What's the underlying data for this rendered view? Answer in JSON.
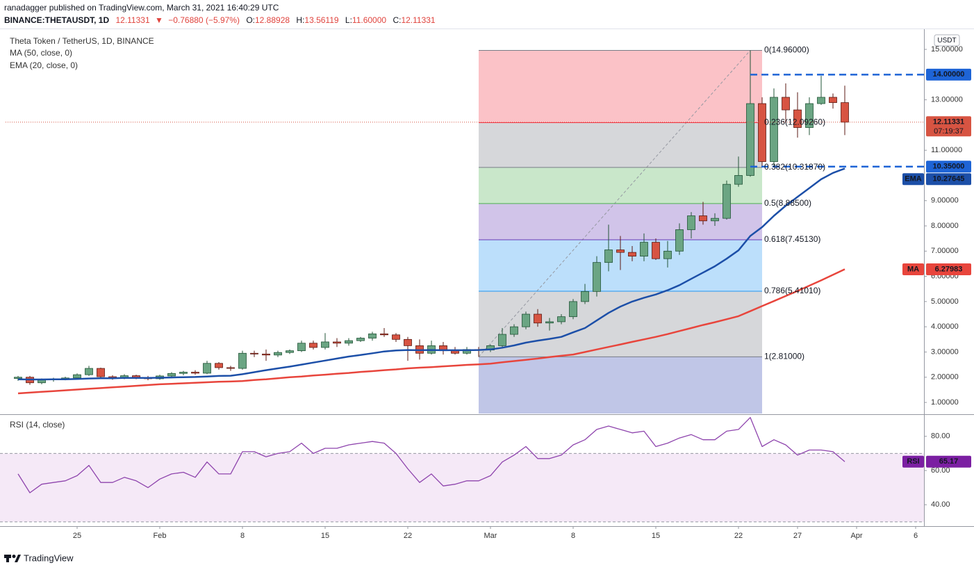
{
  "header": {
    "publisher": "ranadagger published on TradingView.com, March 31, 2021 16:40:29 UTC",
    "symbol": "BINANCE:THETAUSDT, 1D",
    "last": "12.11331",
    "arrow": "▼",
    "change": "−0.76880 (−5.97%)",
    "ohlc": [
      {
        "k": "O:",
        "v": "12.88928"
      },
      {
        "k": "H:",
        "v": "13.56119"
      },
      {
        "k": "L:",
        "v": "11.60000"
      },
      {
        "k": "C:",
        "v": "12.11331"
      }
    ]
  },
  "footer": {
    "brand": "TradingView"
  },
  "chart_data": [
    {
      "type": "candlestick",
      "title": "Theta Token / TetherUS, 1D, BINANCE",
      "currency": "USDT",
      "countdown": "07:19:37",
      "up_color": "#6ba583",
      "down_color": "#d75442",
      "up_border": "#225437",
      "down_border": "#5b1a13",
      "categories": [
        null,
        null,
        null,
        null,
        null,
        "25",
        null,
        null,
        null,
        null,
        null,
        null,
        "Feb",
        null,
        null,
        null,
        null,
        null,
        null,
        "8",
        null,
        null,
        null,
        null,
        null,
        null,
        "15",
        null,
        null,
        null,
        null,
        null,
        null,
        "22",
        null,
        null,
        null,
        null,
        null,
        null,
        "Mar",
        null,
        null,
        null,
        null,
        null,
        null,
        "8",
        null,
        null,
        null,
        null,
        null,
        null,
        "15",
        null,
        null,
        null,
        null,
        null,
        null,
        "22",
        null,
        null,
        null,
        null,
        "27",
        null,
        null,
        null,
        null,
        "Apr",
        null,
        null,
        null,
        null,
        "6",
        null
      ],
      "open": [
        1.95,
        2.0,
        1.78,
        1.9,
        1.93,
        1.97,
        2.1,
        2.35,
        2.02,
        1.98,
        2.06,
        1.98,
        1.94,
        2.05,
        2.15,
        2.2,
        2.16,
        2.55,
        2.38,
        2.35,
        2.95,
        2.92,
        2.88,
        2.98,
        3.05,
        3.35,
        3.18,
        3.4,
        3.35,
        3.45,
        3.55,
        3.72,
        3.68,
        3.5,
        3.25,
        2.95,
        3.25,
        3.05,
        2.95,
        3.1,
        3.08,
        3.25,
        3.7,
        4.0,
        4.5,
        4.15,
        4.2,
        4.4,
        5.0,
        5.4,
        6.55,
        7.05,
        6.95,
        6.8,
        7.35,
        6.7,
        7.0,
        7.85,
        8.4,
        8.2,
        8.3,
        9.65,
        10.0,
        12.85,
        10.55,
        13.1,
        12.6,
        11.9,
        12.85,
        13.1,
        12.88928,
        null,
        null,
        null,
        null,
        null,
        null,
        null
      ],
      "high": [
        2.05,
        2.05,
        1.95,
        1.98,
        2.02,
        2.15,
        2.45,
        2.38,
        2.08,
        2.12,
        2.1,
        2.05,
        2.1,
        2.2,
        2.25,
        2.28,
        2.65,
        2.6,
        2.45,
        3.05,
        3.05,
        3.1,
        3.05,
        3.1,
        3.45,
        3.45,
        3.75,
        3.55,
        3.55,
        3.6,
        3.8,
        3.95,
        3.75,
        3.6,
        3.5,
        3.45,
        3.4,
        3.2,
        3.2,
        3.2,
        3.3,
        3.95,
        4.1,
        4.6,
        4.7,
        4.35,
        4.5,
        5.1,
        5.7,
        6.8,
        8.05,
        7.6,
        7.2,
        7.7,
        7.5,
        7.4,
        8.1,
        8.55,
        8.95,
        8.5,
        9.8,
        10.75,
        14.96,
        13.1,
        13.45,
        13.65,
        13.3,
        13.1,
        13.95,
        13.25,
        13.56119,
        null,
        null,
        null,
        null,
        null,
        null,
        null
      ],
      "low": [
        1.86,
        1.7,
        1.72,
        1.82,
        1.88,
        1.92,
        2.05,
        1.95,
        1.9,
        1.92,
        1.92,
        1.88,
        1.9,
        2.0,
        2.08,
        2.1,
        2.12,
        2.3,
        2.25,
        2.3,
        2.8,
        2.65,
        2.8,
        2.92,
        3.0,
        3.1,
        3.1,
        3.2,
        3.25,
        3.4,
        3.45,
        3.6,
        3.4,
        2.65,
        2.7,
        2.9,
        2.9,
        2.9,
        2.9,
        2.81,
        3.0,
        3.2,
        3.6,
        3.9,
        4.0,
        3.85,
        4.1,
        4.3,
        4.9,
        5.2,
        6.2,
        6.25,
        6.6,
        6.6,
        6.65,
        6.35,
        6.85,
        7.5,
        8.05,
        8.0,
        8.25,
        9.55,
        9.95,
        10.35,
        10.35,
        12.1,
        11.5,
        11.6,
        12.8,
        12.65,
        11.6,
        null,
        null,
        null,
        null,
        null,
        null,
        null
      ],
      "close": [
        2.0,
        1.78,
        1.9,
        1.93,
        1.97,
        2.1,
        2.35,
        2.02,
        1.98,
        2.06,
        1.98,
        1.94,
        2.05,
        2.15,
        2.2,
        2.16,
        2.55,
        2.38,
        2.35,
        2.95,
        2.92,
        2.88,
        2.98,
        3.05,
        3.35,
        3.18,
        3.4,
        3.35,
        3.45,
        3.55,
        3.72,
        3.68,
        3.5,
        3.25,
        2.95,
        3.25,
        3.05,
        2.95,
        3.1,
        3.08,
        3.25,
        3.7,
        4.0,
        4.5,
        4.15,
        4.2,
        4.4,
        5.0,
        5.4,
        6.55,
        7.05,
        6.95,
        6.8,
        7.35,
        6.7,
        7.0,
        7.85,
        8.4,
        8.2,
        8.3,
        9.65,
        10.0,
        12.85,
        10.55,
        13.1,
        12.6,
        11.9,
        12.85,
        13.1,
        12.88928,
        12.11331,
        null,
        null,
        null,
        null,
        null,
        null,
        null
      ],
      "series": [
        {
          "name": "MA (50, close, 0)",
          "tag": "MA",
          "color": "#e8453c",
          "values": [
            1.36,
            1.39,
            1.42,
            1.45,
            1.48,
            1.51,
            1.54,
            1.57,
            1.6,
            1.63,
            1.66,
            1.69,
            1.72,
            1.74,
            1.76,
            1.78,
            1.8,
            1.82,
            1.83,
            1.85,
            1.89,
            1.92,
            1.96,
            2.0,
            2.03,
            2.07,
            2.1,
            2.14,
            2.17,
            2.21,
            2.24,
            2.28,
            2.31,
            2.35,
            2.38,
            2.4,
            2.43,
            2.46,
            2.49,
            2.51,
            2.54,
            2.59,
            2.64,
            2.69,
            2.74,
            2.8,
            2.85,
            2.9,
            3.0,
            3.1,
            3.2,
            3.3,
            3.4,
            3.5,
            3.6,
            3.71,
            3.83,
            3.95,
            4.07,
            4.18,
            4.3,
            4.42,
            4.62,
            4.82,
            5.02,
            5.22,
            5.42,
            5.63,
            5.84,
            6.06,
            6.27983,
            null,
            null,
            null,
            null,
            null,
            null,
            null
          ]
        },
        {
          "name": "EMA (20, close, 0)",
          "tag": "EMA",
          "color": "#1c4fa8",
          "values": [
            1.92,
            1.91,
            1.91,
            1.92,
            1.92,
            1.93,
            1.95,
            1.96,
            1.96,
            1.97,
            1.97,
            1.97,
            1.98,
            1.99,
            2.0,
            2.01,
            2.03,
            2.05,
            2.06,
            2.12,
            2.2,
            2.28,
            2.35,
            2.42,
            2.5,
            2.58,
            2.66,
            2.74,
            2.82,
            2.88,
            2.95,
            3.02,
            3.06,
            3.08,
            3.07,
            3.08,
            3.07,
            3.07,
            3.07,
            3.08,
            3.1,
            3.17,
            3.26,
            3.37,
            3.45,
            3.52,
            3.6,
            3.78,
            3.95,
            4.25,
            4.55,
            4.8,
            5.0,
            5.15,
            5.28,
            5.45,
            5.65,
            5.9,
            6.15,
            6.4,
            6.7,
            7.03,
            7.6,
            7.95,
            8.4,
            8.8,
            9.15,
            9.5,
            9.85,
            10.1,
            10.27645,
            null,
            null,
            null,
            null,
            null,
            null,
            null
          ]
        }
      ],
      "ylim": [
        0.56,
        15.8
      ],
      "yticks": [
        {
          "value": 1,
          "label": "1.00000"
        },
        {
          "value": 2,
          "label": "2.00000"
        },
        {
          "value": 3,
          "label": "3.00000"
        },
        {
          "value": 4,
          "label": "4.00000"
        },
        {
          "value": 5,
          "label": "5.00000"
        },
        {
          "value": 6,
          "label": "6.00000"
        },
        {
          "value": 7,
          "label": "7.00000"
        },
        {
          "value": 8,
          "label": "8.00000"
        },
        {
          "value": 9,
          "label": "9.00000"
        },
        {
          "value": 11,
          "label": "11.00000"
        },
        {
          "value": 13,
          "label": "13.00000"
        },
        {
          "value": 15,
          "label": "15.00000"
        }
      ],
      "hlines": [
        {
          "value": 14,
          "label": "14.00000",
          "color": "#1e64d6"
        },
        {
          "value": 10.35,
          "label": "10.35000",
          "color": "#1e64d6"
        }
      ],
      "fib": {
        "fill_opacity": 0.3,
        "levels": [
          {
            "value": 14.96,
            "label": "0(14.96000)",
            "color": "#787b86"
          },
          {
            "value": 12.0926,
            "label": "0.236(12.09260)",
            "color": "#f23645"
          },
          {
            "value": 10.3187,
            "label": "0.382(10.31870)",
            "color": "#787b86"
          },
          {
            "value": 8.885,
            "label": "0.5(8.88500)",
            "color": "#4caf50"
          },
          {
            "value": 7.4513,
            "label": "0.618(7.45130)",
            "color": "#673ab7"
          },
          {
            "value": 5.4101,
            "label": "0.786(5.41010)",
            "color": "#2196f3"
          },
          {
            "value": 2.81,
            "label": "1(2.81000)",
            "color": "#787b86"
          }
        ]
      }
    },
    {
      "type": "line",
      "title": "RSI (14, close)",
      "series": [
        {
          "name": "RSI",
          "tag": "RSI",
          "color": "#8e44ad",
          "box_color": "#7b1fa2",
          "values": [
            58,
            47,
            52,
            53,
            54,
            57,
            63,
            53,
            53,
            56,
            54,
            50,
            55,
            58,
            59,
            56,
            65,
            58,
            58,
            71,
            71,
            68,
            70,
            71,
            76,
            70,
            73,
            73,
            75,
            76,
            77,
            76,
            70,
            61,
            53,
            58,
            51,
            52,
            54,
            54,
            57,
            65,
            69,
            74,
            67,
            67,
            69,
            75,
            78,
            84,
            86,
            84,
            82,
            83,
            74,
            76,
            79,
            81,
            78,
            78,
            83,
            84,
            91,
            74,
            78,
            75,
            69,
            72,
            72,
            71,
            65.17,
            null,
            null,
            null,
            null,
            null,
            null,
            null
          ]
        }
      ],
      "band": [
        30,
        70
      ],
      "band_color": "#9c27b0",
      "ylim": [
        27.5,
        92.5
      ],
      "yticks": [
        {
          "value": 40,
          "label": "40.00"
        },
        {
          "value": 60,
          "label": "60.00"
        },
        {
          "value": 80,
          "label": "80.00"
        }
      ]
    }
  ]
}
